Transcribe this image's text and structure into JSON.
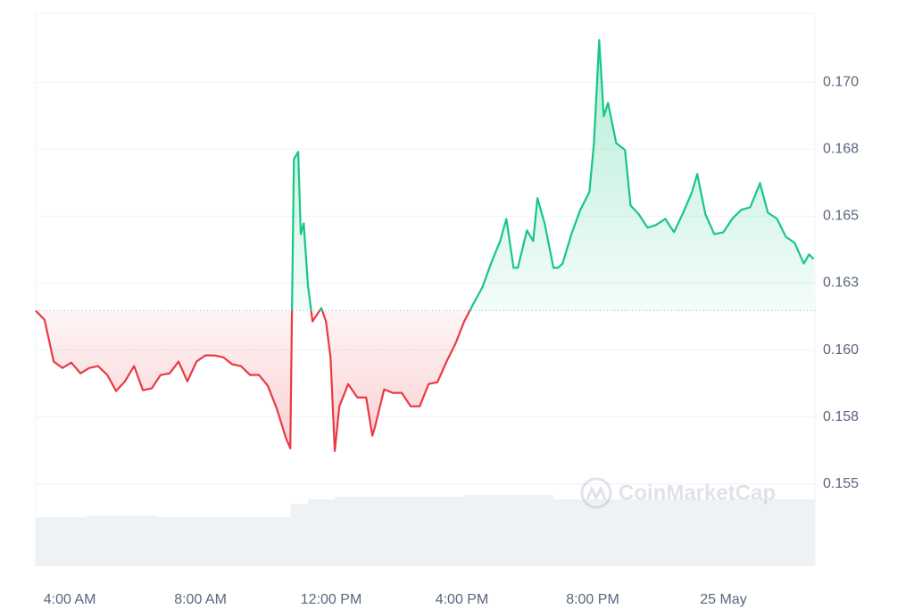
{
  "chart_data": {
    "type": "line",
    "watermark": "CoinMarketCap",
    "xlim": [
      2.96,
      26.8
    ],
    "xticks": [
      {
        "value": 4,
        "label": "4:00 AM"
      },
      {
        "value": 8,
        "label": "8:00 AM"
      },
      {
        "value": 12,
        "label": "12:00 PM"
      },
      {
        "value": 16,
        "label": "4:00 PM"
      },
      {
        "value": 20,
        "label": "8:00 PM"
      },
      {
        "value": 24,
        "label": "25 May"
      }
    ],
    "ylim": [
      0.15193,
      0.17257
    ],
    "yticks": [
      {
        "value": 0.155,
        "label": "0.155"
      },
      {
        "value": 0.1575,
        "label": "0.158"
      },
      {
        "value": 0.16,
        "label": "0.160"
      },
      {
        "value": 0.1625,
        "label": "0.163"
      },
      {
        "value": 0.165,
        "label": "0.165"
      },
      {
        "value": 0.1675,
        "label": "0.168"
      },
      {
        "value": 0.17,
        "label": "0.170"
      }
    ],
    "grid": true,
    "baseline": 0.16147,
    "up_color": "#16c784",
    "down_color": "#ea3943",
    "x": [
      2.96,
      3.23,
      3.51,
      3.78,
      4.05,
      4.33,
      4.6,
      4.87,
      5.15,
      5.42,
      5.69,
      5.97,
      6.24,
      6.51,
      6.78,
      7.06,
      7.33,
      7.6,
      7.88,
      8.15,
      8.42,
      8.7,
      8.97,
      9.24,
      9.52,
      9.79,
      10.06,
      10.34,
      10.61,
      10.75,
      10.8,
      10.86,
      10.99,
      11.07,
      11.16,
      11.29,
      11.43,
      11.7,
      11.84,
      11.98,
      12.11,
      12.25,
      12.52,
      12.8,
      13.07,
      13.26,
      13.34,
      13.62,
      13.89,
      14.16,
      14.43,
      14.71,
      14.98,
      15.25,
      15.53,
      15.8,
      16.07,
      16.35,
      16.62,
      16.89,
      17.17,
      17.36,
      17.58,
      17.71,
      17.99,
      18.18,
      18.31,
      18.53,
      18.8,
      18.94,
      19.08,
      19.35,
      19.62,
      19.9,
      20.04,
      20.2,
      20.34,
      20.47,
      20.72,
      20.99,
      21.16,
      21.41,
      21.68,
      21.94,
      22.22,
      22.49,
      22.77,
      23.04,
      23.2,
      23.45,
      23.72,
      24.0,
      24.27,
      24.54,
      24.82,
      25.12,
      25.36,
      25.64,
      25.91,
      26.18,
      26.46,
      26.62,
      26.76
    ],
    "values": [
      0.16147,
      0.16113,
      0.15957,
      0.15933,
      0.15953,
      0.15913,
      0.15933,
      0.1594,
      0.15907,
      0.15847,
      0.15883,
      0.1594,
      0.1585,
      0.15857,
      0.15907,
      0.15913,
      0.15957,
      0.15883,
      0.15957,
      0.1598,
      0.1598,
      0.15973,
      0.15947,
      0.1594,
      0.15907,
      0.15907,
      0.15867,
      0.1578,
      0.15673,
      0.15633,
      0.1614,
      0.16713,
      0.1674,
      0.16433,
      0.16473,
      0.1624,
      0.16107,
      0.16157,
      0.16107,
      0.15973,
      0.15623,
      0.1579,
      0.15873,
      0.15823,
      0.15823,
      0.1568,
      0.15713,
      0.15853,
      0.1584,
      0.1584,
      0.1579,
      0.1579,
      0.15873,
      0.1588,
      0.15957,
      0.16023,
      0.16107,
      0.16173,
      0.16233,
      0.16323,
      0.16407,
      0.1649,
      0.16307,
      0.16307,
      0.16447,
      0.16407,
      0.16567,
      0.16473,
      0.16307,
      0.16307,
      0.16323,
      0.16433,
      0.16523,
      0.1659,
      0.16773,
      0.17157,
      0.16873,
      0.16923,
      0.16773,
      0.16747,
      0.1654,
      0.16507,
      0.16457,
      0.16467,
      0.1649,
      0.1644,
      0.16513,
      0.1659,
      0.16657,
      0.16507,
      0.16433,
      0.1644,
      0.1649,
      0.16523,
      0.16533,
      0.16623,
      0.16513,
      0.1649,
      0.16423,
      0.164,
      0.16323,
      0.16357,
      0.1634
    ],
    "volume": {
      "color": "#eff2f5",
      "ylim": [
        0,
        100
      ],
      "x": [
        2.96,
        4.52,
        6.66,
        10.75,
        11.29,
        12.11,
        16.07,
        18.8
      ],
      "values": [
        55,
        57,
        55,
        70,
        75,
        78,
        80,
        75
      ]
    }
  }
}
